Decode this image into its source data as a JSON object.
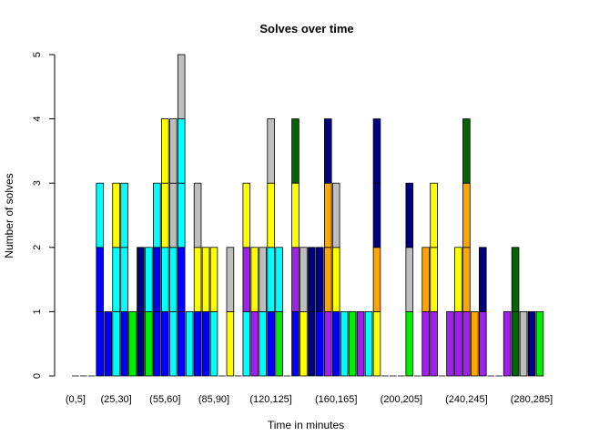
{
  "chart_data": {
    "type": "bar",
    "stacked": true,
    "title": "Solves over time",
    "xlabel": "Time in minutes",
    "ylabel": "Number of solves",
    "ylim": [
      0,
      5
    ],
    "yticks": [
      0,
      1,
      2,
      3,
      4,
      5
    ],
    "grid": false,
    "legend": "none",
    "xtick_labels": [
      "(0,5]",
      "(25,30]",
      "(55,60]",
      "(85,90]",
      "(120,125]",
      "(160,165]",
      "(200,205]",
      "(240,245]",
      "(280,285]"
    ],
    "xtick_label_bar_index": [
      0,
      5,
      11,
      17,
      24,
      32,
      40,
      48,
      56
    ],
    "bars": [
      [],
      [],
      [],
      [
        "#0000ff",
        "#0000ff",
        "#00ffff"
      ],
      [
        "#0000ff"
      ],
      [
        "#00ffff",
        "#00ffff",
        "#ffff00"
      ],
      [
        "#0000ff",
        "#00ffff",
        "#00ffff"
      ],
      [
        "#00ee00"
      ],
      [
        "#000080",
        "#000080"
      ],
      [
        "#00ee00",
        "#00ffff"
      ],
      [
        "#0000ff",
        "#0000ff",
        "#00ffff"
      ],
      [
        "#0000ff",
        "#00ffff",
        "#ffff00",
        "#ffff00"
      ],
      [
        "#00ffff",
        "#00ffff",
        "#bebebe",
        "#bebebe"
      ],
      [
        "#0000ff",
        "#0000ff",
        "#00ffff",
        "#00ffff",
        "#bebebe"
      ],
      [
        "#00ffff"
      ],
      [
        "#0000ff",
        "#ffff00",
        "#bebebe"
      ],
      [
        "#0000ff",
        "#ffff00"
      ],
      [
        "#00ffff",
        "#ffff00"
      ],
      [],
      [
        "#ffff00",
        "#bebebe"
      ],
      [],
      [
        "#00ffff",
        "#a020f0",
        "#ffff00"
      ],
      [
        "#a020f0",
        "#ffff00"
      ],
      [
        "#00ffff",
        "#bebebe"
      ],
      [
        "#0000ff",
        "#00ffff",
        "#ffff00",
        "#bebebe"
      ],
      [
        "#00ee00",
        "#00ffff"
      ],
      [],
      [
        "#0000ff",
        "#a020f0",
        "#ffff00",
        "#006400"
      ],
      [
        "#ffff00",
        "#bebebe"
      ],
      [
        "#000080",
        "#000080"
      ],
      [
        "#0000ff",
        "#000080"
      ],
      [
        "#a020f0",
        "#ffa500",
        "#ffa500",
        "#000080"
      ],
      [
        "#0000ff",
        "#ffff00",
        "#bebebe"
      ],
      [
        "#00ffff"
      ],
      [
        "#00ee00"
      ],
      [
        "#a020f0"
      ],
      [
        "#00ffff"
      ],
      [
        "#ffff00",
        "#ffa500",
        "#000080",
        "#000080"
      ],
      [],
      [],
      [],
      [
        "#00ee00",
        "#bebebe",
        "#000080"
      ],
      [],
      [
        "#a020f0",
        "#ffa500"
      ],
      [
        "#a020f0",
        "#ffff00",
        "#ffff00"
      ],
      [],
      [
        "#a020f0"
      ],
      [
        "#a020f0",
        "#ffff00"
      ],
      [
        "#a020f0",
        "#ffa500",
        "#ffa500",
        "#006400"
      ],
      [
        "#ffa500"
      ],
      [
        "#a020f0",
        "#000080"
      ],
      [],
      [],
      [
        "#a020f0"
      ],
      [
        "#006400",
        "#006400"
      ],
      [
        "#bebebe"
      ],
      [
        "#000080"
      ],
      [
        "#00ee00"
      ]
    ]
  }
}
